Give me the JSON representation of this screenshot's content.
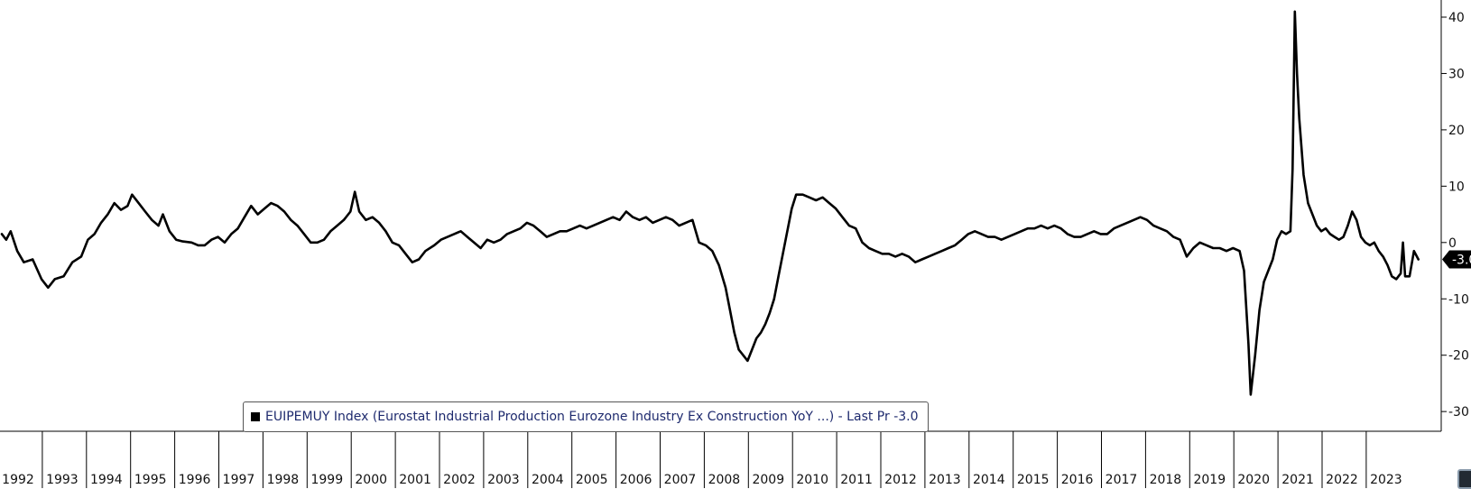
{
  "chart_data": {
    "type": "line",
    "title": "",
    "xlabel": "",
    "ylabel": "",
    "x_ticks": [
      "1992",
      "1993",
      "1994",
      "1995",
      "1996",
      "1997",
      "1998",
      "1999",
      "2000",
      "2001",
      "2002",
      "2003",
      "2004",
      "2005",
      "2006",
      "2007",
      "2008",
      "2009",
      "2010",
      "2011",
      "2012",
      "2013",
      "2014",
      "2015",
      "2016",
      "2017",
      "2018",
      "2019",
      "2020",
      "2021",
      "2022",
      "2023"
    ],
    "y_ticks": [
      "40",
      "30",
      "20",
      "10",
      "0",
      "-10",
      "-20",
      "-30"
    ],
    "y_tick_values": [
      40,
      30,
      20,
      10,
      0,
      -10,
      -20,
      -30
    ],
    "xlim": [
      1991.95,
      2024.6
    ],
    "ylim": [
      -35,
      42
    ],
    "y_axis_position": "right",
    "grid": false,
    "legend_position": "bottom-left",
    "series": [
      {
        "name": "EUIPEMUY Index (Eurostat Industrial Production Eurozone Industry Ex Construction YoY ...) - Last Pr -3.0",
        "color": "#000000",
        "points": [
          [
            1992.0,
            1.5
          ],
          [
            1992.1,
            0.5
          ],
          [
            1992.2,
            2.0
          ],
          [
            1992.35,
            -1.5
          ],
          [
            1992.5,
            -3.5
          ],
          [
            1992.7,
            -3.0
          ],
          [
            1992.9,
            -6.5
          ],
          [
            1993.05,
            -8.0
          ],
          [
            1993.2,
            -6.5
          ],
          [
            1993.4,
            -6.0
          ],
          [
            1993.6,
            -3.5
          ],
          [
            1993.8,
            -2.5
          ],
          [
            1993.95,
            0.5
          ],
          [
            1994.1,
            1.5
          ],
          [
            1994.25,
            3.5
          ],
          [
            1994.4,
            5.0
          ],
          [
            1994.55,
            7.0
          ],
          [
            1994.7,
            5.8
          ],
          [
            1994.85,
            6.5
          ],
          [
            1994.95,
            8.5
          ],
          [
            1995.1,
            7.0
          ],
          [
            1995.25,
            5.5
          ],
          [
            1995.4,
            4.0
          ],
          [
            1995.55,
            3.0
          ],
          [
            1995.65,
            5.0
          ],
          [
            1995.8,
            2.0
          ],
          [
            1995.95,
            0.5
          ],
          [
            1996.1,
            0.2
          ],
          [
            1996.3,
            0.0
          ],
          [
            1996.45,
            -0.5
          ],
          [
            1996.6,
            -0.5
          ],
          [
            1996.75,
            0.5
          ],
          [
            1996.9,
            1.0
          ],
          [
            1997.05,
            0.0
          ],
          [
            1997.2,
            1.5
          ],
          [
            1997.35,
            2.5
          ],
          [
            1997.5,
            4.5
          ],
          [
            1997.65,
            6.5
          ],
          [
            1997.8,
            5.0
          ],
          [
            1997.95,
            6.0
          ],
          [
            1998.1,
            7.0
          ],
          [
            1998.25,
            6.5
          ],
          [
            1998.4,
            5.5
          ],
          [
            1998.55,
            4.0
          ],
          [
            1998.7,
            3.0
          ],
          [
            1998.85,
            1.5
          ],
          [
            1999.0,
            0.0
          ],
          [
            1999.15,
            0.0
          ],
          [
            1999.3,
            0.5
          ],
          [
            1999.45,
            2.0
          ],
          [
            1999.6,
            3.0
          ],
          [
            1999.75,
            4.0
          ],
          [
            1999.9,
            5.5
          ],
          [
            2000.0,
            9.0
          ],
          [
            2000.1,
            5.5
          ],
          [
            2000.25,
            4.0
          ],
          [
            2000.4,
            4.5
          ],
          [
            2000.55,
            3.5
          ],
          [
            2000.7,
            2.0
          ],
          [
            2000.85,
            0.0
          ],
          [
            2001.0,
            -0.5
          ],
          [
            2001.15,
            -2.0
          ],
          [
            2001.3,
            -3.5
          ],
          [
            2001.45,
            -3.0
          ],
          [
            2001.6,
            -1.5
          ],
          [
            2001.8,
            -0.5
          ],
          [
            2001.95,
            0.5
          ],
          [
            2002.1,
            1.0
          ],
          [
            2002.25,
            1.5
          ],
          [
            2002.4,
            2.0
          ],
          [
            2002.55,
            1.0
          ],
          [
            2002.7,
            0.0
          ],
          [
            2002.85,
            -1.0
          ],
          [
            2003.0,
            0.5
          ],
          [
            2003.15,
            0.0
          ],
          [
            2003.3,
            0.5
          ],
          [
            2003.45,
            1.5
          ],
          [
            2003.6,
            2.0
          ],
          [
            2003.75,
            2.5
          ],
          [
            2003.9,
            3.5
          ],
          [
            2004.05,
            3.0
          ],
          [
            2004.2,
            2.0
          ],
          [
            2004.35,
            1.0
          ],
          [
            2004.5,
            1.5
          ],
          [
            2004.65,
            2.0
          ],
          [
            2004.8,
            2.0
          ],
          [
            2004.95,
            2.5
          ],
          [
            2005.1,
            3.0
          ],
          [
            2005.25,
            2.5
          ],
          [
            2005.4,
            3.0
          ],
          [
            2005.55,
            3.5
          ],
          [
            2005.7,
            4.0
          ],
          [
            2005.85,
            4.5
          ],
          [
            2006.0,
            4.0
          ],
          [
            2006.15,
            5.5
          ],
          [
            2006.3,
            4.5
          ],
          [
            2006.45,
            4.0
          ],
          [
            2006.6,
            4.5
          ],
          [
            2006.75,
            3.5
          ],
          [
            2006.9,
            4.0
          ],
          [
            2007.05,
            4.5
          ],
          [
            2007.2,
            4.0
          ],
          [
            2007.35,
            3.0
          ],
          [
            2007.5,
            3.5
          ],
          [
            2007.65,
            4.0
          ],
          [
            2007.8,
            0.0
          ],
          [
            2007.95,
            -0.5
          ],
          [
            2008.1,
            -1.5
          ],
          [
            2008.25,
            -4.0
          ],
          [
            2008.4,
            -8.0
          ],
          [
            2008.5,
            -12.0
          ],
          [
            2008.6,
            -16.0
          ],
          [
            2008.7,
            -19.0
          ],
          [
            2008.8,
            -20.0
          ],
          [
            2008.9,
            -21.0
          ],
          [
            2009.0,
            -19.0
          ],
          [
            2009.1,
            -17.0
          ],
          [
            2009.2,
            -16.0
          ],
          [
            2009.3,
            -14.5
          ],
          [
            2009.4,
            -12.5
          ],
          [
            2009.5,
            -10.0
          ],
          [
            2009.6,
            -6.0
          ],
          [
            2009.7,
            -2.0
          ],
          [
            2009.8,
            2.0
          ],
          [
            2009.9,
            6.0
          ],
          [
            2010.0,
            8.5
          ],
          [
            2010.15,
            8.5
          ],
          [
            2010.3,
            8.0
          ],
          [
            2010.45,
            7.5
          ],
          [
            2010.6,
            8.0
          ],
          [
            2010.75,
            7.0
          ],
          [
            2010.9,
            6.0
          ],
          [
            2011.05,
            4.5
          ],
          [
            2011.2,
            3.0
          ],
          [
            2011.35,
            2.5
          ],
          [
            2011.5,
            0.0
          ],
          [
            2011.65,
            -1.0
          ],
          [
            2011.8,
            -1.5
          ],
          [
            2011.95,
            -2.0
          ],
          [
            2012.1,
            -2.0
          ],
          [
            2012.25,
            -2.5
          ],
          [
            2012.4,
            -2.0
          ],
          [
            2012.55,
            -2.5
          ],
          [
            2012.7,
            -3.5
          ],
          [
            2012.85,
            -3.0
          ],
          [
            2013.0,
            -2.5
          ],
          [
            2013.15,
            -2.0
          ],
          [
            2013.3,
            -1.5
          ],
          [
            2013.45,
            -1.0
          ],
          [
            2013.6,
            -0.5
          ],
          [
            2013.75,
            0.5
          ],
          [
            2013.9,
            1.5
          ],
          [
            2014.05,
            2.0
          ],
          [
            2014.2,
            1.5
          ],
          [
            2014.35,
            1.0
          ],
          [
            2014.5,
            1.0
          ],
          [
            2014.65,
            0.5
          ],
          [
            2014.8,
            1.0
          ],
          [
            2014.95,
            1.5
          ],
          [
            2015.1,
            2.0
          ],
          [
            2015.25,
            2.5
          ],
          [
            2015.4,
            2.5
          ],
          [
            2015.55,
            3.0
          ],
          [
            2015.7,
            2.5
          ],
          [
            2015.85,
            3.0
          ],
          [
            2016.0,
            2.5
          ],
          [
            2016.15,
            1.5
          ],
          [
            2016.3,
            1.0
          ],
          [
            2016.45,
            1.0
          ],
          [
            2016.6,
            1.5
          ],
          [
            2016.75,
            2.0
          ],
          [
            2016.9,
            1.5
          ],
          [
            2017.05,
            1.5
          ],
          [
            2017.2,
            2.5
          ],
          [
            2017.35,
            3.0
          ],
          [
            2017.5,
            3.5
          ],
          [
            2017.65,
            4.0
          ],
          [
            2017.8,
            4.5
          ],
          [
            2017.95,
            4.0
          ],
          [
            2018.1,
            3.0
          ],
          [
            2018.25,
            2.5
          ],
          [
            2018.4,
            2.0
          ],
          [
            2018.55,
            1.0
          ],
          [
            2018.7,
            0.5
          ],
          [
            2018.85,
            -2.5
          ],
          [
            2019.0,
            -1.0
          ],
          [
            2019.15,
            0.0
          ],
          [
            2019.3,
            -0.5
          ],
          [
            2019.45,
            -1.0
          ],
          [
            2019.6,
            -1.0
          ],
          [
            2019.75,
            -1.5
          ],
          [
            2019.9,
            -1.0
          ],
          [
            2020.05,
            -1.5
          ],
          [
            2020.15,
            -5.0
          ],
          [
            2020.25,
            -18.0
          ],
          [
            2020.3,
            -27.0
          ],
          [
            2020.4,
            -20.0
          ],
          [
            2020.5,
            -12.0
          ],
          [
            2020.6,
            -7.0
          ],
          [
            2020.7,
            -5.0
          ],
          [
            2020.8,
            -3.0
          ],
          [
            2020.9,
            0.5
          ],
          [
            2021.0,
            2.0
          ],
          [
            2021.1,
            1.5
          ],
          [
            2021.2,
            2.0
          ],
          [
            2021.25,
            13.0
          ],
          [
            2021.3,
            41.0
          ],
          [
            2021.35,
            30.0
          ],
          [
            2021.4,
            22.0
          ],
          [
            2021.5,
            12.0
          ],
          [
            2021.6,
            7.0
          ],
          [
            2021.7,
            5.0
          ],
          [
            2021.8,
            3.0
          ],
          [
            2021.9,
            2.0
          ],
          [
            2022.0,
            2.5
          ],
          [
            2022.1,
            1.5
          ],
          [
            2022.2,
            1.0
          ],
          [
            2022.3,
            0.5
          ],
          [
            2022.4,
            1.0
          ],
          [
            2022.5,
            3.0
          ],
          [
            2022.6,
            5.5
          ],
          [
            2022.7,
            4.0
          ],
          [
            2022.8,
            1.0
          ],
          [
            2022.9,
            0.0
          ],
          [
            2023.0,
            -0.5
          ],
          [
            2023.1,
            0.0
          ],
          [
            2023.2,
            -1.5
          ],
          [
            2023.3,
            -2.5
          ],
          [
            2023.4,
            -4.0
          ],
          [
            2023.5,
            -6.0
          ],
          [
            2023.6,
            -6.5
          ],
          [
            2023.7,
            -5.5
          ],
          [
            2023.75,
            0.0
          ],
          [
            2023.8,
            -6.0
          ],
          [
            2023.9,
            -6.0
          ],
          [
            2024.0,
            -1.5
          ],
          [
            2024.1,
            -3.0
          ]
        ]
      }
    ],
    "last_value_label": "-3.0",
    "last_value": -3.0
  }
}
